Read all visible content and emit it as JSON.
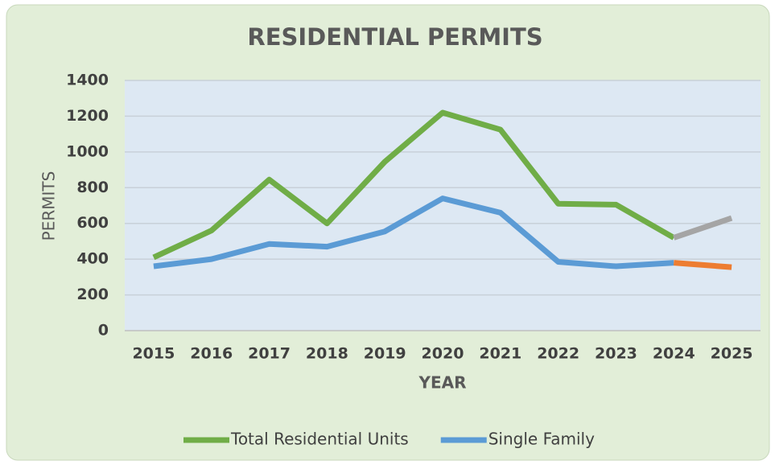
{
  "chart_data": {
    "type": "line",
    "title": "RESIDENTIAL PERMITS",
    "x_label": "YEAR",
    "y_label": "PERMITS",
    "categories": [
      "2015",
      "2016",
      "2017",
      "2018",
      "2019",
      "2020",
      "2021",
      "2022",
      "2023",
      "2024",
      "2025"
    ],
    "series": [
      {
        "name": "Total Residential Units",
        "color": "#70ad47",
        "last_segment_color": "#a5a5a5",
        "values": [
          410,
          560,
          845,
          600,
          945,
          1220,
          1125,
          710,
          705,
          520,
          630
        ]
      },
      {
        "name": "Single Family",
        "color": "#5b9bd5",
        "last_segment_color": "#ed7d31",
        "values": [
          360,
          400,
          485,
          470,
          555,
          740,
          660,
          385,
          360,
          380,
          355
        ]
      }
    ],
    "ylim": [
      0,
      1400
    ],
    "yticks": [
      0,
      200,
      400,
      600,
      800,
      1000,
      1200,
      1400
    ],
    "grid": true,
    "legend": "bottom"
  }
}
